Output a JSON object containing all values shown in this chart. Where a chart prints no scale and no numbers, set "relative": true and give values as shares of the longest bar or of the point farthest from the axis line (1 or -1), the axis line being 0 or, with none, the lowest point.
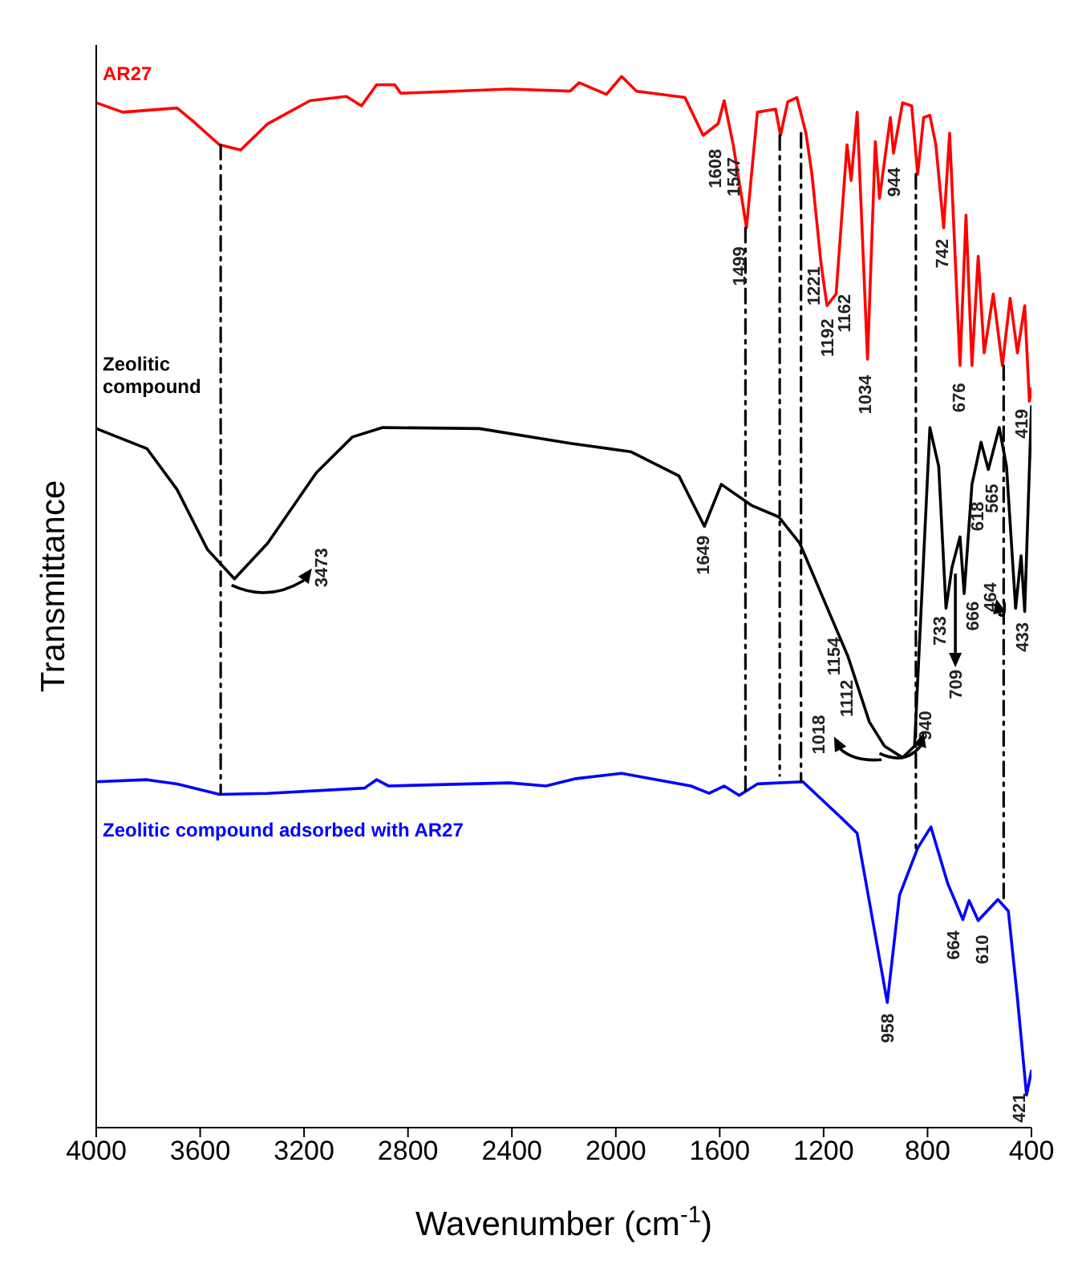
{
  "chart_data": {
    "type": "line",
    "relative": true,
    "xlabel": "Wavenumber (cm$^{-1}$)",
    "ylabel": "Transmittance",
    "xlim": [
      4000,
      400
    ],
    "xticks": [
      4000,
      3600,
      3200,
      2800,
      2400,
      2000,
      1600,
      1200,
      800,
      400
    ],
    "series": [
      {
        "name": "AR27",
        "color": "#ff0000",
        "x": [
          4000,
          3898,
          3689,
          3630,
          3526,
          3444,
          3340,
          3177,
          3037,
          2979,
          2921,
          2851,
          2828,
          2409,
          2176,
          2141,
          2036,
          1978,
          1920,
          1734,
          1664,
          1606,
          1583,
          1548,
          1497,
          1455,
          1385,
          1366,
          1338,
          1303,
          1268,
          1245,
          1210,
          1187,
          1152,
          1110,
          1094,
          1071,
          1031,
          1001,
          985,
          943,
          931,
          896,
          861,
          838,
          815,
          791,
          768,
          738,
          715,
          675,
          652,
          629,
          605,
          582,
          547,
          512,
          482,
          454,
          426,
          408,
          400
        ],
        "values": [
          0.975,
          0.966,
          0.97,
          0.958,
          0.935,
          0.93,
          0.955,
          0.977,
          0.981,
          0.972,
          0.992,
          0.992,
          0.984,
          0.988,
          0.986,
          0.994,
          0.983,
          1.0,
          0.986,
          0.98,
          0.944,
          0.955,
          0.977,
          0.935,
          0.856,
          0.966,
          0.969,
          0.944,
          0.976,
          0.98,
          0.946,
          0.907,
          0.822,
          0.782,
          0.793,
          0.935,
          0.901,
          0.966,
          0.731,
          0.938,
          0.884,
          0.961,
          0.927,
          0.975,
          0.972,
          0.907,
          0.961,
          0.963,
          0.935,
          0.856,
          0.946,
          0.725,
          0.868,
          0.725,
          0.829,
          0.737,
          0.793,
          0.725,
          0.789,
          0.737,
          0.782,
          0.691,
          0.703
        ]
      },
      {
        "name": "Zeolitic compound",
        "color": "#000000",
        "x": [
          4000,
          3805,
          3689,
          3572,
          3468,
          3340,
          3153,
          3014,
          2897,
          2525,
          2176,
          1943,
          1757,
          1659,
          1594,
          1478,
          1373,
          1292,
          1175,
          1106,
          1024,
          966,
          896,
          850,
          791,
          757,
          729,
          706,
          675,
          659,
          629,
          594,
          566,
          524,
          496,
          461,
          440,
          426,
          400
        ],
        "values": [
          0.665,
          0.646,
          0.607,
          0.55,
          0.522,
          0.556,
          0.623,
          0.657,
          0.666,
          0.665,
          0.651,
          0.643,
          0.62,
          0.572,
          0.612,
          0.592,
          0.581,
          0.556,
          0.488,
          0.448,
          0.386,
          0.363,
          0.352,
          0.363,
          0.666,
          0.629,
          0.494,
          0.533,
          0.562,
          0.508,
          0.612,
          0.652,
          0.626,
          0.666,
          0.629,
          0.494,
          0.544,
          0.491,
          0.686
        ]
      },
      {
        "name": "Zeolitic compound adsorbed with AR27",
        "color": "#0000ff",
        "x": [
          4000,
          3805,
          3689,
          3526,
          3340,
          2967,
          2921,
          2874,
          2409,
          2269,
          2153,
          1978,
          1711,
          1641,
          1583,
          1525,
          1455,
          1280,
          1129,
          1071,
          1024,
          955,
          908,
          838,
          787,
          722,
          664,
          640,
          605,
          529,
          489,
          454,
          419,
          400
        ],
        "values": [
          0.329,
          0.331,
          0.327,
          0.317,
          0.318,
          0.323,
          0.331,
          0.325,
          0.328,
          0.325,
          0.332,
          0.337,
          0.325,
          0.318,
          0.325,
          0.316,
          0.327,
          0.329,
          0.294,
          0.28,
          0.215,
          0.119,
          0.221,
          0.266,
          0.286,
          0.232,
          0.198,
          0.216,
          0.197,
          0.217,
          0.206,
          0.123,
          0.031,
          0.054
        ]
      },
      {
        "type": "line",
        "color": "#000000",
        "line_style": "dashed",
        "x": [
          3521,
          3521
        ],
        "values": [
          0.935,
          0.317
        ]
      },
      {
        "type": "line",
        "color": "#000000",
        "line_style": "dashed",
        "x": [
          1501,
          1501
        ],
        "values": [
          0.856,
          0.316
        ]
      },
      {
        "type": "line",
        "color": "#000000",
        "line_style": "dashed",
        "x": [
          1369,
          1369
        ],
        "values": [
          0.944,
          0.335
        ]
      },
      {
        "type": "line",
        "color": "#000000",
        "line_style": "dashed",
        "x": [
          1287,
          1287
        ],
        "values": [
          0.946,
          0.329
        ]
      },
      {
        "type": "line",
        "color": "#000000",
        "line_style": "dashed",
        "x": [
          845,
          845
        ],
        "values": [
          0.907,
          0.266
        ]
      },
      {
        "type": "line",
        "color": "#000000",
        "line_style": "dashed",
        "x": [
          507,
          507
        ],
        "values": [
          0.725,
          0.217
        ]
      }
    ],
    "annotations": [
      {
        "text": "1608",
        "x": 1606,
        "y": 0.955
      },
      {
        "text": "1547",
        "x": 1548,
        "y": 0.935
      },
      {
        "text": "1499",
        "x": 1497,
        "y": 0.856
      },
      {
        "text": "1221",
        "x": 1210,
        "y": 0.822
      },
      {
        "text": "1192",
        "x": 1187,
        "y": 0.782
      },
      {
        "text": "1162",
        "x": 1152,
        "y": 0.793
      },
      {
        "text": "944",
        "x": 931,
        "y": 0.927
      },
      {
        "text": "742",
        "x": 738,
        "y": 0.856
      },
      {
        "text": "1034",
        "x": 1031,
        "y": 0.731
      },
      {
        "text": "676",
        "x": 675,
        "y": 0.725
      },
      {
        "text": "419",
        "x": 408,
        "y": 0.691
      },
      {
        "text": "3473",
        "x": 3468,
        "y": 0.522
      },
      {
        "text": "1649",
        "x": 1659,
        "y": 0.572
      },
      {
        "text": "1154",
        "x": 1175,
        "y": 0.488
      },
      {
        "text": "1112",
        "x": 1106,
        "y": 0.448
      },
      {
        "text": "1018",
        "x": 1024,
        "y": 0.386
      },
      {
        "text": "940",
        "x": 896,
        "y": 0.352
      },
      {
        "text": "733",
        "x": 729,
        "y": 0.494
      },
      {
        "text": "709",
        "x": 706,
        "y": 0.533
      },
      {
        "text": "666",
        "x": 659,
        "y": 0.508
      },
      {
        "text": "618",
        "x": 629,
        "y": 0.612
      },
      {
        "text": "565",
        "x": 566,
        "y": 0.626
      },
      {
        "text": "464",
        "x": 461,
        "y": 0.494
      },
      {
        "text": "433",
        "x": 426,
        "y": 0.491
      },
      {
        "text": "958",
        "x": 955,
        "y": 0.119
      },
      {
        "text": "664",
        "x": 664,
        "y": 0.198
      },
      {
        "text": "610",
        "x": 605,
        "y": 0.197
      },
      {
        "text": "421",
        "x": 419,
        "y": 0.031
      }
    ]
  }
}
